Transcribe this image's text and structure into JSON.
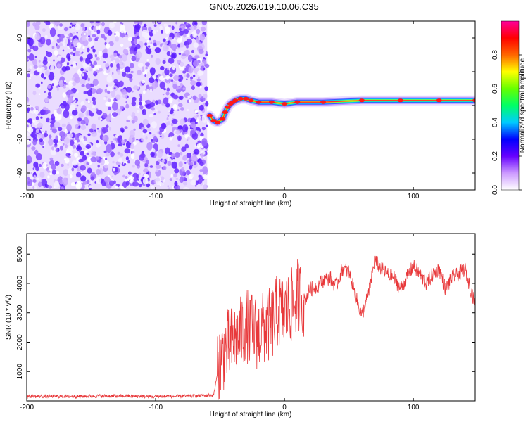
{
  "title": "GN05.2026.019.10.06.C35",
  "chart_data": [
    {
      "type": "heatmap",
      "name": "spectrogram",
      "xlabel": "Height of straight line (km)",
      "ylabel": "Frequency (Hz)",
      "xlim": [
        -200,
        148
      ],
      "ylim": [
        -50,
        50
      ],
      "xticks": [
        -200,
        -100,
        0,
        100
      ],
      "yticks": [
        -40,
        -20,
        0,
        20,
        40
      ],
      "noise_region_x": [
        -200,
        -60
      ],
      "signal_track": [
        {
          "x": -58,
          "f": -6
        },
        {
          "x": -55,
          "f": -9
        },
        {
          "x": -52,
          "f": -10
        },
        {
          "x": -48,
          "f": -8
        },
        {
          "x": -46,
          "f": -4
        },
        {
          "x": -44,
          "f": -1
        },
        {
          "x": -42,
          "f": 1
        },
        {
          "x": -40,
          "f": 2
        },
        {
          "x": -38,
          "f": 3
        },
        {
          "x": -34,
          "f": 4
        },
        {
          "x": -30,
          "f": 4
        },
        {
          "x": -26,
          "f": 3
        },
        {
          "x": -20,
          "f": 2
        },
        {
          "x": -10,
          "f": 2
        },
        {
          "x": 0,
          "f": 1
        },
        {
          "x": 10,
          "f": 2
        },
        {
          "x": 30,
          "f": 2
        },
        {
          "x": 60,
          "f": 3
        },
        {
          "x": 90,
          "f": 3
        },
        {
          "x": 120,
          "f": 3
        },
        {
          "x": 148,
          "f": 3
        }
      ],
      "colorbar": {
        "label": "Normalized spectral amplitude",
        "ticks": [
          "0.0",
          "0.2",
          "0.4",
          "0.6",
          "0.8"
        ],
        "range": [
          0,
          1
        ],
        "stops": [
          "#ffffff",
          "#cc99ff",
          "#6600ff",
          "#0000ff",
          "#00ccff",
          "#00ff66",
          "#66ff00",
          "#ffff00",
          "#ff6600",
          "#ff0000",
          "#ff0099"
        ]
      }
    },
    {
      "type": "line",
      "name": "snr",
      "xlabel": "Height of straight line (km)",
      "ylabel": "SNR (10 * v/v)",
      "xlim": [
        -200,
        148
      ],
      "ylim": [
        0,
        5700
      ],
      "xticks": [
        -200,
        -100,
        0,
        100
      ],
      "yticks": [
        1000,
        2000,
        3000,
        4000,
        5000
      ],
      "color": "#e8383a",
      "series": [
        {
          "name": "SNR",
          "x": [
            -200,
            -180,
            -160,
            -140,
            -120,
            -100,
            -80,
            -65,
            -55,
            -50,
            -45,
            -40,
            -35,
            -30,
            -25,
            -20,
            -15,
            -10,
            -5,
            0,
            5,
            10,
            15,
            20,
            25,
            30,
            35,
            40,
            45,
            50,
            55,
            60,
            65,
            70,
            75,
            80,
            85,
            90,
            95,
            100,
            105,
            110,
            115,
            120,
            125,
            130,
            135,
            140,
            148
          ],
          "y": [
            150,
            160,
            150,
            170,
            160,
            150,
            160,
            170,
            200,
            1400,
            1800,
            2000,
            2200,
            2600,
            2400,
            2300,
            2500,
            2600,
            3100,
            3000,
            3200,
            3600,
            3400,
            3800,
            3900,
            4100,
            4200,
            3900,
            4500,
            4400,
            3600,
            2900,
            3600,
            4800,
            4500,
            4300,
            4200,
            3800,
            4200,
            4600,
            4300,
            4000,
            4300,
            4500,
            3800,
            4200,
            4300,
            4500,
            3300
          ]
        }
      ]
    }
  ]
}
